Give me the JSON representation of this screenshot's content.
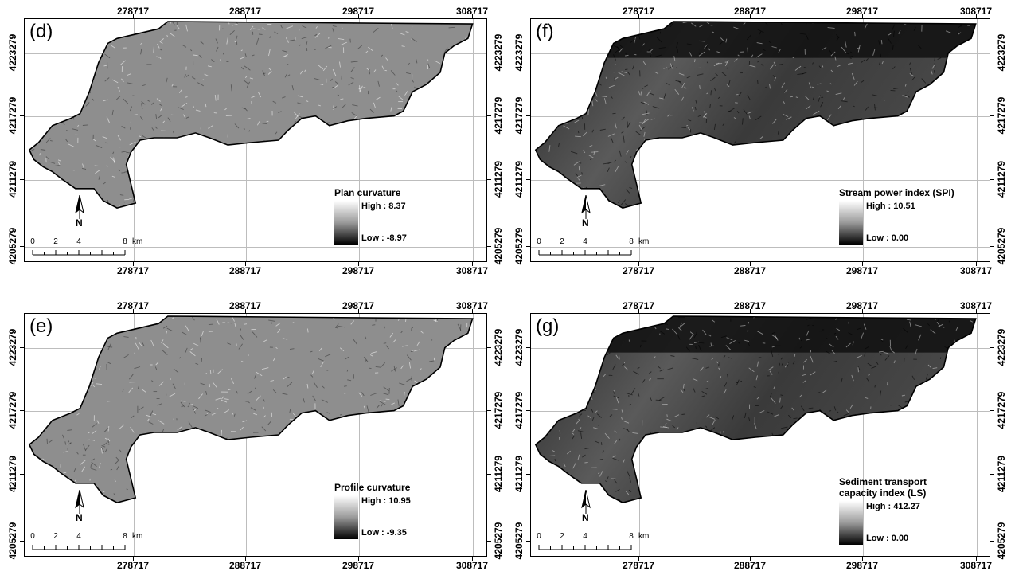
{
  "x_ticks": [
    "278717",
    "288717",
    "298717",
    "308717"
  ],
  "y_ticks": [
    "4223279",
    "4217279",
    "4211279",
    "4205279"
  ],
  "scale": {
    "numbers": [
      "0",
      "2",
      "4",
      "8"
    ],
    "unit": "km"
  },
  "north_label": "N",
  "panels": [
    {
      "label": "(d)",
      "legend_title": "Plan curvature",
      "high": "High : 8.37",
      "low": "Low : -8.97",
      "shade": "curv"
    },
    {
      "label": "(f)",
      "legend_title": "Stream power index (SPI)",
      "high": "High : 10.51",
      "low": "Low : 0.00",
      "shade": "dark"
    },
    {
      "label": "(e)",
      "legend_title": "Profile curvature",
      "high": "High : 10.95",
      "low": "Low : -9.35",
      "shade": "curv"
    },
    {
      "label": "(g)",
      "legend_title": "Sediment transport\ncapacity index (LS)",
      "high": "High : 412.27",
      "low": "Low : 0.00",
      "shade": "dark"
    }
  ]
}
